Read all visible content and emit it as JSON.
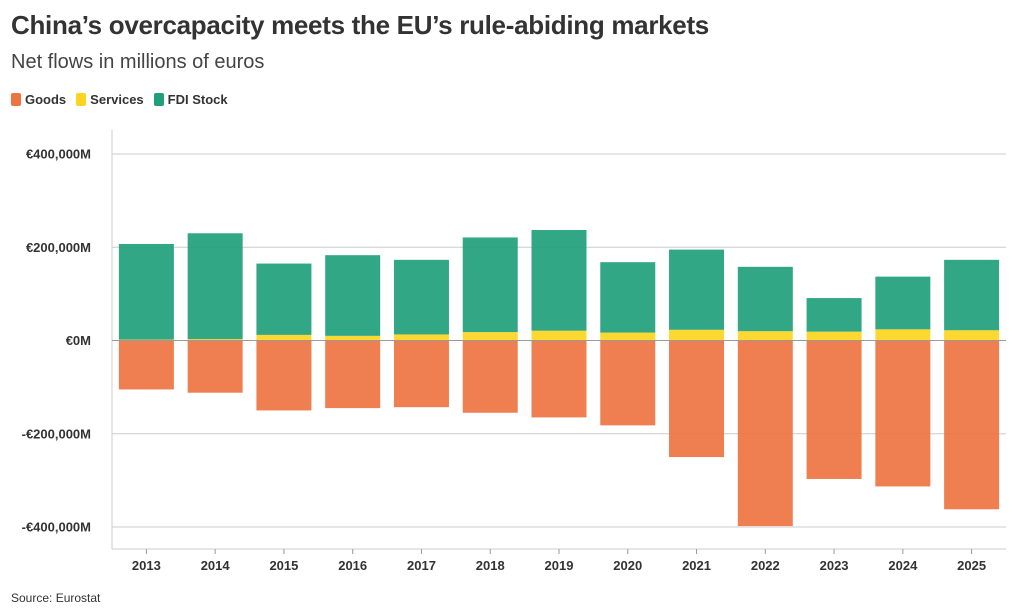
{
  "title": "China’s overcapacity meets the EU’s rule-abiding markets",
  "subtitle": "Net flows in millions of euros",
  "source": "Source: Eurostat",
  "colors": {
    "goods": "#ee7442",
    "services": "#fdd520",
    "fdi": "#219f7b",
    "grid": "#cccccc",
    "axis": "#999999",
    "zero": "#9a9a9a"
  },
  "chart_data": {
    "type": "bar",
    "stacked": true,
    "title": "China’s overcapacity meets the EU’s rule-abiding markets",
    "subtitle": "Net flows in millions of euros",
    "categories": [
      "2013",
      "2014",
      "2015",
      "2016",
      "2017",
      "2018",
      "2019",
      "2020",
      "2021",
      "2022",
      "2023",
      "2024",
      "2025"
    ],
    "series": [
      {
        "name": "Goods",
        "color": "#ee7442",
        "values": [
          -105000,
          -112000,
          -150000,
          -145000,
          -143000,
          -155000,
          -165000,
          -182000,
          -250000,
          -398000,
          -297000,
          -313000,
          -362000
        ]
      },
      {
        "name": "Services",
        "color": "#fdd520",
        "values": [
          2000,
          3000,
          12000,
          10000,
          13000,
          18000,
          21000,
          17000,
          23000,
          20000,
          19000,
          24000,
          22000
        ]
      },
      {
        "name": "FDI Stock",
        "color": "#219f7b",
        "values": [
          205000,
          227000,
          153000,
          173000,
          160000,
          203000,
          216000,
          151000,
          172000,
          138000,
          72000,
          113000,
          151000
        ]
      }
    ],
    "ylim": [
      -450000,
      450000
    ],
    "yticks": [
      400000,
      200000,
      0,
      -200000,
      -400000
    ],
    "ytick_labels": [
      "€400,000M",
      "€200,000M",
      "€0M",
      "-€200,000M",
      "-€400,000M"
    ],
    "xlabel": "",
    "ylabel": "",
    "grid": true,
    "legend_position": "top-left"
  }
}
